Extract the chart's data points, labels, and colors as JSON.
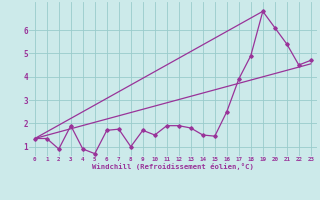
{
  "xlabel": "Windchill (Refroidissement éolien,°C)",
  "bg_color": "#cceaea",
  "line_color": "#993399",
  "grid_color": "#99cccc",
  "axis_color": "#993399",
  "xlim": [
    -0.5,
    23.5
  ],
  "ylim": [
    0.6,
    7.2
  ],
  "xticks": [
    0,
    1,
    2,
    3,
    4,
    5,
    6,
    7,
    8,
    9,
    10,
    11,
    12,
    13,
    14,
    15,
    16,
    17,
    18,
    19,
    20,
    21,
    22,
    23
  ],
  "yticks": [
    1,
    2,
    3,
    4,
    5,
    6
  ],
  "series1_x": [
    0,
    1,
    2,
    3,
    4,
    5,
    6,
    7,
    8,
    9,
    10,
    11,
    12,
    13,
    14,
    15,
    16,
    17,
    18,
    19,
    20,
    21,
    22,
    23
  ],
  "series1_y": [
    1.35,
    1.35,
    0.9,
    1.9,
    0.9,
    0.7,
    1.7,
    1.75,
    1.0,
    1.7,
    1.5,
    1.9,
    1.9,
    1.8,
    1.5,
    1.45,
    2.5,
    3.9,
    4.9,
    6.8,
    6.1,
    5.4,
    4.5,
    4.7
  ],
  "series2_x": [
    0,
    23
  ],
  "series2_y": [
    1.35,
    4.55
  ],
  "series3_x": [
    0,
    19
  ],
  "series3_y": [
    1.35,
    6.8
  ]
}
